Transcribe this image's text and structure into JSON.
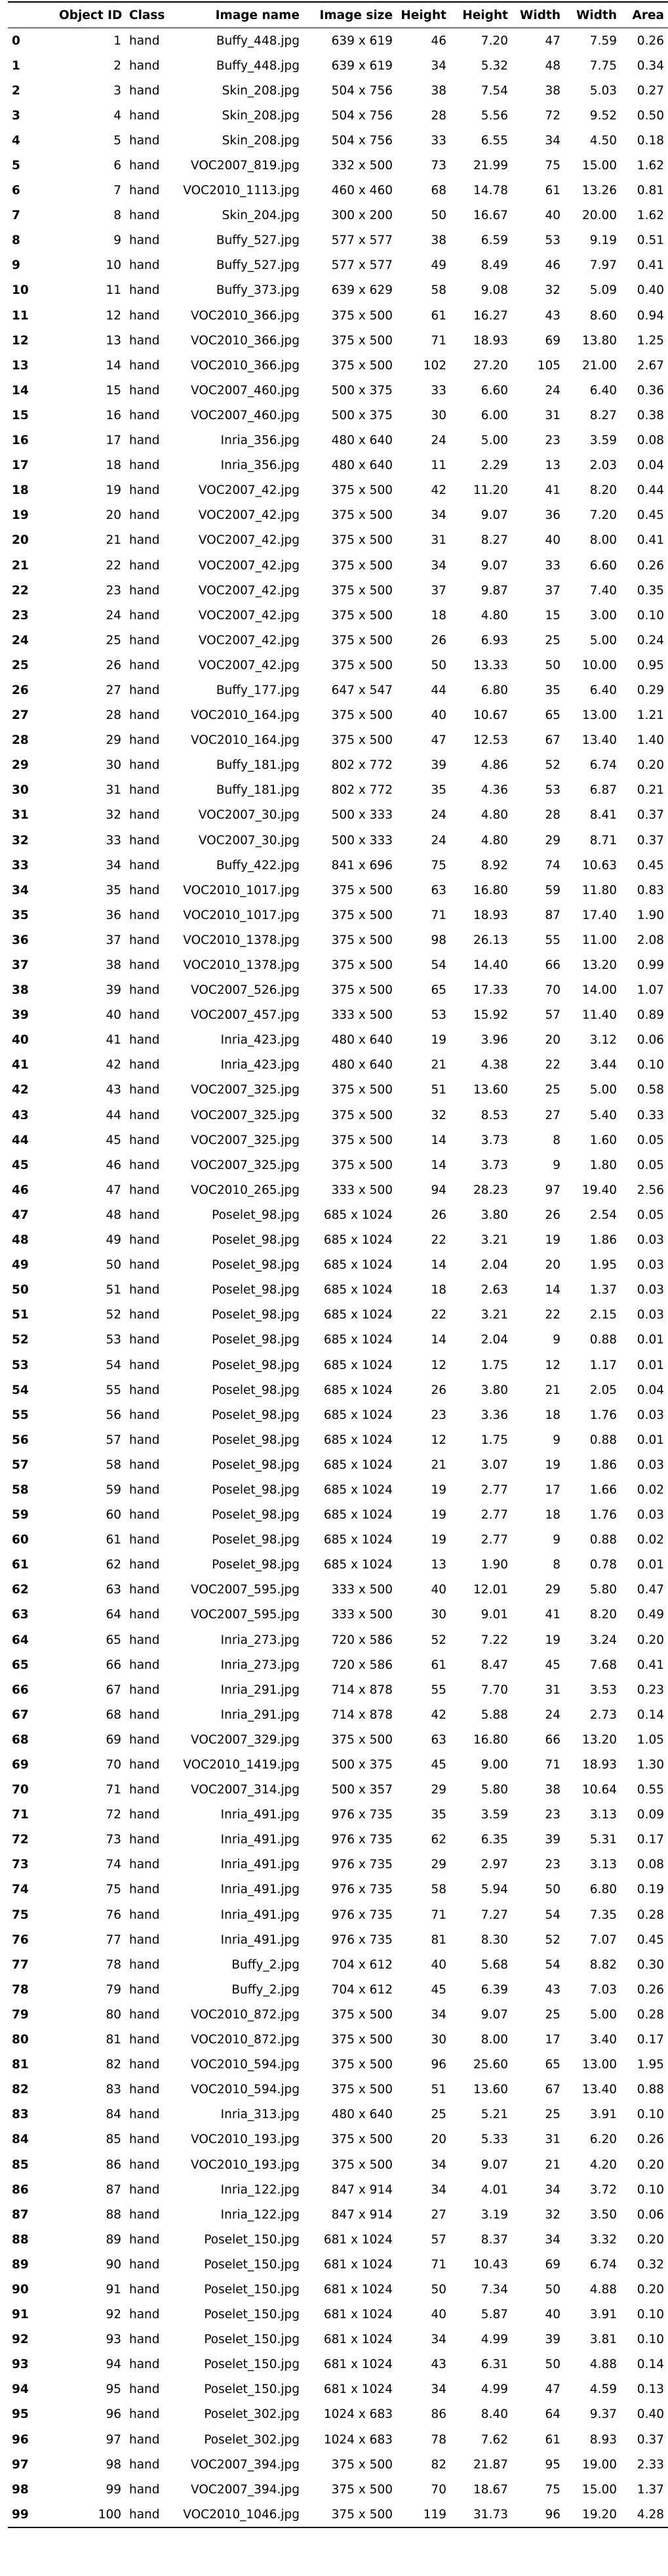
{
  "columns": [
    "",
    "Object ID",
    "Class",
    "Image name",
    "Image size",
    "Height",
    "Height",
    "Width",
    "Width",
    "Area"
  ],
  "rows": [
    [
      "0",
      "1",
      "hand",
      "Buffy_448.jpg",
      "639 x 619",
      "46",
      "7.20",
      "47",
      "7.59",
      "0.26"
    ],
    [
      "1",
      "2",
      "hand",
      "Buffy_448.jpg",
      "639 x 619",
      "34",
      "5.32",
      "48",
      "7.75",
      "0.34"
    ],
    [
      "2",
      "3",
      "hand",
      "Skin_208.jpg",
      "504 x 756",
      "38",
      "7.54",
      "38",
      "5.03",
      "0.27"
    ],
    [
      "3",
      "4",
      "hand",
      "Skin_208.jpg",
      "504 x 756",
      "28",
      "5.56",
      "72",
      "9.52",
      "0.50"
    ],
    [
      "4",
      "5",
      "hand",
      "Skin_208.jpg",
      "504 x 756",
      "33",
      "6.55",
      "34",
      "4.50",
      "0.18"
    ],
    [
      "5",
      "6",
      "hand",
      "VOC2007_819.jpg",
      "332 x 500",
      "73",
      "21.99",
      "75",
      "15.00",
      "1.62"
    ],
    [
      "6",
      "7",
      "hand",
      "VOC2010_1113.jpg",
      "460 x 460",
      "68",
      "14.78",
      "61",
      "13.26",
      "0.81"
    ],
    [
      "7",
      "8",
      "hand",
      "Skin_204.jpg",
      "300 x 200",
      "50",
      "16.67",
      "40",
      "20.00",
      "1.62"
    ],
    [
      "8",
      "9",
      "hand",
      "Buffy_527.jpg",
      "577 x 577",
      "38",
      "6.59",
      "53",
      "9.19",
      "0.51"
    ],
    [
      "9",
      "10",
      "hand",
      "Buffy_527.jpg",
      "577 x 577",
      "49",
      "8.49",
      "46",
      "7.97",
      "0.41"
    ],
    [
      "10",
      "11",
      "hand",
      "Buffy_373.jpg",
      "639 x 629",
      "58",
      "9.08",
      "32",
      "5.09",
      "0.40"
    ],
    [
      "11",
      "12",
      "hand",
      "VOC2010_366.jpg",
      "375 x 500",
      "61",
      "16.27",
      "43",
      "8.60",
      "0.94"
    ],
    [
      "12",
      "13",
      "hand",
      "VOC2010_366.jpg",
      "375 x 500",
      "71",
      "18.93",
      "69",
      "13.80",
      "1.25"
    ],
    [
      "13",
      "14",
      "hand",
      "VOC2010_366.jpg",
      "375 x 500",
      "102",
      "27.20",
      "105",
      "21.00",
      "2.67"
    ],
    [
      "14",
      "15",
      "hand",
      "VOC2007_460.jpg",
      "500 x 375",
      "33",
      "6.60",
      "24",
      "6.40",
      "0.36"
    ],
    [
      "15",
      "16",
      "hand",
      "VOC2007_460.jpg",
      "500 x 375",
      "30",
      "6.00",
      "31",
      "8.27",
      "0.38"
    ],
    [
      "16",
      "17",
      "hand",
      "Inria_356.jpg",
      "480 x 640",
      "24",
      "5.00",
      "23",
      "3.59",
      "0.08"
    ],
    [
      "17",
      "18",
      "hand",
      "Inria_356.jpg",
      "480 x 640",
      "11",
      "2.29",
      "13",
      "2.03",
      "0.04"
    ],
    [
      "18",
      "19",
      "hand",
      "VOC2007_42.jpg",
      "375 x 500",
      "42",
      "11.20",
      "41",
      "8.20",
      "0.44"
    ],
    [
      "19",
      "20",
      "hand",
      "VOC2007_42.jpg",
      "375 x 500",
      "34",
      "9.07",
      "36",
      "7.20",
      "0.45"
    ],
    [
      "20",
      "21",
      "hand",
      "VOC2007_42.jpg",
      "375 x 500",
      "31",
      "8.27",
      "40",
      "8.00",
      "0.41"
    ],
    [
      "21",
      "22",
      "hand",
      "VOC2007_42.jpg",
      "375 x 500",
      "34",
      "9.07",
      "33",
      "6.60",
      "0.26"
    ],
    [
      "22",
      "23",
      "hand",
      "VOC2007_42.jpg",
      "375 x 500",
      "37",
      "9.87",
      "37",
      "7.40",
      "0.35"
    ],
    [
      "23",
      "24",
      "hand",
      "VOC2007_42.jpg",
      "375 x 500",
      "18",
      "4.80",
      "15",
      "3.00",
      "0.10"
    ],
    [
      "24",
      "25",
      "hand",
      "VOC2007_42.jpg",
      "375 x 500",
      "26",
      "6.93",
      "25",
      "5.00",
      "0.24"
    ],
    [
      "25",
      "26",
      "hand",
      "VOC2007_42.jpg",
      "375 x 500",
      "50",
      "13.33",
      "50",
      "10.00",
      "0.95"
    ],
    [
      "26",
      "27",
      "hand",
      "Buffy_177.jpg",
      "647 x 547",
      "44",
      "6.80",
      "35",
      "6.40",
      "0.29"
    ],
    [
      "27",
      "28",
      "hand",
      "VOC2010_164.jpg",
      "375 x 500",
      "40",
      "10.67",
      "65",
      "13.00",
      "1.21"
    ],
    [
      "28",
      "29",
      "hand",
      "VOC2010_164.jpg",
      "375 x 500",
      "47",
      "12.53",
      "67",
      "13.40",
      "1.40"
    ],
    [
      "29",
      "30",
      "hand",
      "Buffy_181.jpg",
      "802 x 772",
      "39",
      "4.86",
      "52",
      "6.74",
      "0.20"
    ],
    [
      "30",
      "31",
      "hand",
      "Buffy_181.jpg",
      "802 x 772",
      "35",
      "4.36",
      "53",
      "6.87",
      "0.21"
    ],
    [
      "31",
      "32",
      "hand",
      "VOC2007_30.jpg",
      "500 x 333",
      "24",
      "4.80",
      "28",
      "8.41",
      "0.37"
    ],
    [
      "32",
      "33",
      "hand",
      "VOC2007_30.jpg",
      "500 x 333",
      "24",
      "4.80",
      "29",
      "8.71",
      "0.37"
    ],
    [
      "33",
      "34",
      "hand",
      "Buffy_422.jpg",
      "841 x 696",
      "75",
      "8.92",
      "74",
      "10.63",
      "0.45"
    ],
    [
      "34",
      "35",
      "hand",
      "VOC2010_1017.jpg",
      "375 x 500",
      "63",
      "16.80",
      "59",
      "11.80",
      "0.83"
    ],
    [
      "35",
      "36",
      "hand",
      "VOC2010_1017.jpg",
      "375 x 500",
      "71",
      "18.93",
      "87",
      "17.40",
      "1.90"
    ],
    [
      "36",
      "37",
      "hand",
      "VOC2010_1378.jpg",
      "375 x 500",
      "98",
      "26.13",
      "55",
      "11.00",
      "2.08"
    ],
    [
      "37",
      "38",
      "hand",
      "VOC2010_1378.jpg",
      "375 x 500",
      "54",
      "14.40",
      "66",
      "13.20",
      "0.99"
    ],
    [
      "38",
      "39",
      "hand",
      "VOC2007_526.jpg",
      "375 x 500",
      "65",
      "17.33",
      "70",
      "14.00",
      "1.07"
    ],
    [
      "39",
      "40",
      "hand",
      "VOC2007_457.jpg",
      "333 x 500",
      "53",
      "15.92",
      "57",
      "11.40",
      "0.89"
    ],
    [
      "40",
      "41",
      "hand",
      "Inria_423.jpg",
      "480 x 640",
      "19",
      "3.96",
      "20",
      "3.12",
      "0.06"
    ],
    [
      "41",
      "42",
      "hand",
      "Inria_423.jpg",
      "480 x 640",
      "21",
      "4.38",
      "22",
      "3.44",
      "0.10"
    ],
    [
      "42",
      "43",
      "hand",
      "VOC2007_325.jpg",
      "375 x 500",
      "51",
      "13.60",
      "25",
      "5.00",
      "0.58"
    ],
    [
      "43",
      "44",
      "hand",
      "VOC2007_325.jpg",
      "375 x 500",
      "32",
      "8.53",
      "27",
      "5.40",
      "0.33"
    ],
    [
      "44",
      "45",
      "hand",
      "VOC2007_325.jpg",
      "375 x 500",
      "14",
      "3.73",
      "8",
      "1.60",
      "0.05"
    ],
    [
      "45",
      "46",
      "hand",
      "VOC2007_325.jpg",
      "375 x 500",
      "14",
      "3.73",
      "9",
      "1.80",
      "0.05"
    ],
    [
      "46",
      "47",
      "hand",
      "VOC2010_265.jpg",
      "333 x 500",
      "94",
      "28.23",
      "97",
      "19.40",
      "2.56"
    ],
    [
      "47",
      "48",
      "hand",
      "Poselet_98.jpg",
      "685 x 1024",
      "26",
      "3.80",
      "26",
      "2.54",
      "0.05"
    ],
    [
      "48",
      "49",
      "hand",
      "Poselet_98.jpg",
      "685 x 1024",
      "22",
      "3.21",
      "19",
      "1.86",
      "0.03"
    ],
    [
      "49",
      "50",
      "hand",
      "Poselet_98.jpg",
      "685 x 1024",
      "14",
      "2.04",
      "20",
      "1.95",
      "0.03"
    ],
    [
      "50",
      "51",
      "hand",
      "Poselet_98.jpg",
      "685 x 1024",
      "18",
      "2.63",
      "14",
      "1.37",
      "0.03"
    ],
    [
      "51",
      "52",
      "hand",
      "Poselet_98.jpg",
      "685 x 1024",
      "22",
      "3.21",
      "22",
      "2.15",
      "0.03"
    ],
    [
      "52",
      "53",
      "hand",
      "Poselet_98.jpg",
      "685 x 1024",
      "14",
      "2.04",
      "9",
      "0.88",
      "0.01"
    ],
    [
      "53",
      "54",
      "hand",
      "Poselet_98.jpg",
      "685 x 1024",
      "12",
      "1.75",
      "12",
      "1.17",
      "0.01"
    ],
    [
      "54",
      "55",
      "hand",
      "Poselet_98.jpg",
      "685 x 1024",
      "26",
      "3.80",
      "21",
      "2.05",
      "0.04"
    ],
    [
      "55",
      "56",
      "hand",
      "Poselet_98.jpg",
      "685 x 1024",
      "23",
      "3.36",
      "18",
      "1.76",
      "0.03"
    ],
    [
      "56",
      "57",
      "hand",
      "Poselet_98.jpg",
      "685 x 1024",
      "12",
      "1.75",
      "9",
      "0.88",
      "0.01"
    ],
    [
      "57",
      "58",
      "hand",
      "Poselet_98.jpg",
      "685 x 1024",
      "21",
      "3.07",
      "19",
      "1.86",
      "0.03"
    ],
    [
      "58",
      "59",
      "hand",
      "Poselet_98.jpg",
      "685 x 1024",
      "19",
      "2.77",
      "17",
      "1.66",
      "0.02"
    ],
    [
      "59",
      "60",
      "hand",
      "Poselet_98.jpg",
      "685 x 1024",
      "19",
      "2.77",
      "18",
      "1.76",
      "0.03"
    ],
    [
      "60",
      "61",
      "hand",
      "Poselet_98.jpg",
      "685 x 1024",
      "19",
      "2.77",
      "9",
      "0.88",
      "0.02"
    ],
    [
      "61",
      "62",
      "hand",
      "Poselet_98.jpg",
      "685 x 1024",
      "13",
      "1.90",
      "8",
      "0.78",
      "0.01"
    ],
    [
      "62",
      "63",
      "hand",
      "VOC2007_595.jpg",
      "333 x 500",
      "40",
      "12.01",
      "29",
      "5.80",
      "0.47"
    ],
    [
      "63",
      "64",
      "hand",
      "VOC2007_595.jpg",
      "333 x 500",
      "30",
      "9.01",
      "41",
      "8.20",
      "0.49"
    ],
    [
      "64",
      "65",
      "hand",
      "Inria_273.jpg",
      "720 x 586",
      "52",
      "7.22",
      "19",
      "3.24",
      "0.20"
    ],
    [
      "65",
      "66",
      "hand",
      "Inria_273.jpg",
      "720 x 586",
      "61",
      "8.47",
      "45",
      "7.68",
      "0.41"
    ],
    [
      "66",
      "67",
      "hand",
      "Inria_291.jpg",
      "714 x 878",
      "55",
      "7.70",
      "31",
      "3.53",
      "0.23"
    ],
    [
      "67",
      "68",
      "hand",
      "Inria_291.jpg",
      "714 x 878",
      "42",
      "5.88",
      "24",
      "2.73",
      "0.14"
    ],
    [
      "68",
      "69",
      "hand",
      "VOC2007_329.jpg",
      "375 x 500",
      "63",
      "16.80",
      "66",
      "13.20",
      "1.05"
    ],
    [
      "69",
      "70",
      "hand",
      "VOC2010_1419.jpg",
      "500 x 375",
      "45",
      "9.00",
      "71",
      "18.93",
      "1.30"
    ],
    [
      "70",
      "71",
      "hand",
      "VOC2007_314.jpg",
      "500 x 357",
      "29",
      "5.80",
      "38",
      "10.64",
      "0.55"
    ],
    [
      "71",
      "72",
      "hand",
      "Inria_491.jpg",
      "976 x 735",
      "35",
      "3.59",
      "23",
      "3.13",
      "0.09"
    ],
    [
      "72",
      "73",
      "hand",
      "Inria_491.jpg",
      "976 x 735",
      "62",
      "6.35",
      "39",
      "5.31",
      "0.17"
    ],
    [
      "73",
      "74",
      "hand",
      "Inria_491.jpg",
      "976 x 735",
      "29",
      "2.97",
      "23",
      "3.13",
      "0.08"
    ],
    [
      "74",
      "75",
      "hand",
      "Inria_491.jpg",
      "976 x 735",
      "58",
      "5.94",
      "50",
      "6.80",
      "0.19"
    ],
    [
      "75",
      "76",
      "hand",
      "Inria_491.jpg",
      "976 x 735",
      "71",
      "7.27",
      "54",
      "7.35",
      "0.28"
    ],
    [
      "76",
      "77",
      "hand",
      "Inria_491.jpg",
      "976 x 735",
      "81",
      "8.30",
      "52",
      "7.07",
      "0.45"
    ],
    [
      "77",
      "78",
      "hand",
      "Buffy_2.jpg",
      "704 x 612",
      "40",
      "5.68",
      "54",
      "8.82",
      "0.30"
    ],
    [
      "78",
      "79",
      "hand",
      "Buffy_2.jpg",
      "704 x 612",
      "45",
      "6.39",
      "43",
      "7.03",
      "0.26"
    ],
    [
      "79",
      "80",
      "hand",
      "VOC2010_872.jpg",
      "375 x 500",
      "34",
      "9.07",
      "25",
      "5.00",
      "0.28"
    ],
    [
      "80",
      "81",
      "hand",
      "VOC2010_872.jpg",
      "375 x 500",
      "30",
      "8.00",
      "17",
      "3.40",
      "0.17"
    ],
    [
      "81",
      "82",
      "hand",
      "VOC2010_594.jpg",
      "375 x 500",
      "96",
      "25.60",
      "65",
      "13.00",
      "1.95"
    ],
    [
      "82",
      "83",
      "hand",
      "VOC2010_594.jpg",
      "375 x 500",
      "51",
      "13.60",
      "67",
      "13.40",
      "0.88"
    ],
    [
      "83",
      "84",
      "hand",
      "Inria_313.jpg",
      "480 x 640",
      "25",
      "5.21",
      "25",
      "3.91",
      "0.10"
    ],
    [
      "84",
      "85",
      "hand",
      "VOC2010_193.jpg",
      "375 x 500",
      "20",
      "5.33",
      "31",
      "6.20",
      "0.26"
    ],
    [
      "85",
      "86",
      "hand",
      "VOC2010_193.jpg",
      "375 x 500",
      "34",
      "9.07",
      "21",
      "4.20",
      "0.20"
    ],
    [
      "86",
      "87",
      "hand",
      "Inria_122.jpg",
      "847 x 914",
      "34",
      "4.01",
      "34",
      "3.72",
      "0.10"
    ],
    [
      "87",
      "88",
      "hand",
      "Inria_122.jpg",
      "847 x 914",
      "27",
      "3.19",
      "32",
      "3.50",
      "0.06"
    ],
    [
      "88",
      "89",
      "hand",
      "Poselet_150.jpg",
      "681 x 1024",
      "57",
      "8.37",
      "34",
      "3.32",
      "0.20"
    ],
    [
      "89",
      "90",
      "hand",
      "Poselet_150.jpg",
      "681 x 1024",
      "71",
      "10.43",
      "69",
      "6.74",
      "0.32"
    ],
    [
      "90",
      "91",
      "hand",
      "Poselet_150.jpg",
      "681 x 1024",
      "50",
      "7.34",
      "50",
      "4.88",
      "0.20"
    ],
    [
      "91",
      "92",
      "hand",
      "Poselet_150.jpg",
      "681 x 1024",
      "40",
      "5.87",
      "40",
      "3.91",
      "0.10"
    ],
    [
      "92",
      "93",
      "hand",
      "Poselet_150.jpg",
      "681 x 1024",
      "34",
      "4.99",
      "39",
      "3.81",
      "0.10"
    ],
    [
      "93",
      "94",
      "hand",
      "Poselet_150.jpg",
      "681 x 1024",
      "43",
      "6.31",
      "50",
      "4.88",
      "0.14"
    ],
    [
      "94",
      "95",
      "hand",
      "Poselet_150.jpg",
      "681 x 1024",
      "34",
      "4.99",
      "47",
      "4.59",
      "0.13"
    ],
    [
      "95",
      "96",
      "hand",
      "Poselet_302.jpg",
      "1024 x 683",
      "86",
      "8.40",
      "64",
      "9.37",
      "0.40"
    ],
    [
      "96",
      "97",
      "hand",
      "Poselet_302.jpg",
      "1024 x 683",
      "78",
      "7.62",
      "61",
      "8.93",
      "0.37"
    ],
    [
      "97",
      "98",
      "hand",
      "VOC2007_394.jpg",
      "375 x 500",
      "82",
      "21.87",
      "95",
      "19.00",
      "2.33"
    ],
    [
      "98",
      "99",
      "hand",
      "VOC2007_394.jpg",
      "375 x 500",
      "70",
      "18.67",
      "75",
      "15.00",
      "1.37"
    ],
    [
      "99",
      "100",
      "hand",
      "VOC2010_1046.jpg",
      "375 x 500",
      "119",
      "31.73",
      "96",
      "19.20",
      "4.28"
    ]
  ]
}
